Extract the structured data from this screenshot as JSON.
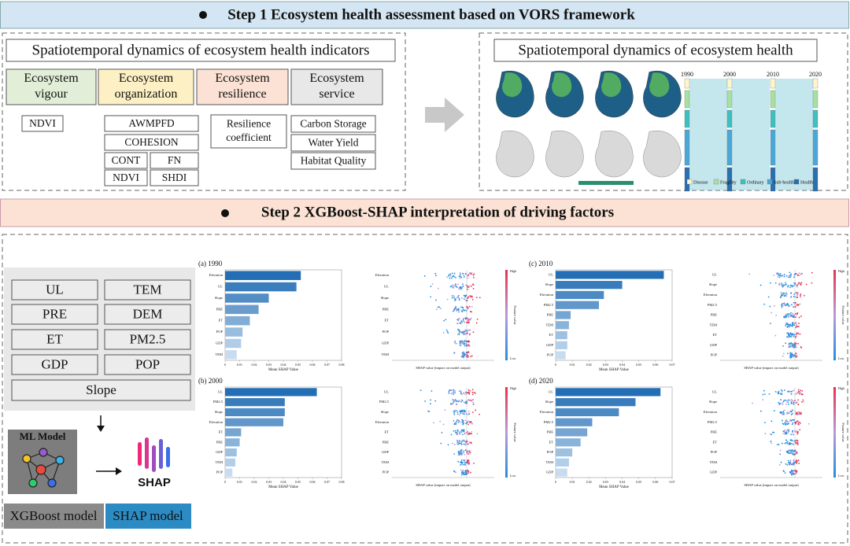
{
  "step1": {
    "title": "Step 1  Ecosystem health assessment based on VORS framework",
    "indicators": {
      "title": "Spatiotemporal dynamics of ecosystem health indicators",
      "groups": [
        {
          "name": [
            "Ecosystem",
            "vigour"
          ],
          "items": [
            "NDVI"
          ]
        },
        {
          "name": [
            "Ecosystem",
            "organization"
          ],
          "items": [
            "AWMPFD",
            "COHESION",
            "CONT",
            "FN",
            "NDVI",
            "SHDI"
          ]
        },
        {
          "name": [
            "Ecosystem",
            "resilience"
          ],
          "items": [
            [
              "Resilience",
              "coefficient"
            ]
          ]
        },
        {
          "name": [
            "Ecosystem",
            "service"
          ],
          "items": [
            "Carbon Storage",
            "Water Yield",
            "Habitat Quality"
          ]
        }
      ]
    },
    "health": {
      "title": "Spatiotemporal dynamics of ecosystem health",
      "sankey_years": [
        "1990",
        "2000",
        "2010",
        "2020"
      ],
      "legend": [
        "Disease",
        "Fragility",
        "Ordinary",
        "Sub-health",
        "Health"
      ]
    }
  },
  "step2": {
    "title": "Step 2  XGBoost-SHAP interpretation of driving factors",
    "factors": [
      "UL",
      "TEM",
      "PRE",
      "DEM",
      "ET",
      "PM2.5",
      "GDP",
      "POP",
      "Slope"
    ],
    "ml_model": "ML Model",
    "shap_logo": "SHAP",
    "legend": [
      "XGBoost model",
      "SHAP model"
    ],
    "panels": [
      {
        "type": "bar",
        "label": "(a) 1990",
        "categories": [
          "Elevation",
          "UL",
          "Slope",
          "PRE",
          "ET",
          "POP",
          "GDP",
          "TEM"
        ],
        "values": [
          0.052,
          0.049,
          0.03,
          0.023,
          0.017,
          0.012,
          0.011,
          0.008
        ],
        "xlim": [
          0,
          0.08
        ],
        "xticks": [
          0,
          0.01,
          0.02,
          0.03,
          0.04,
          0.05,
          0.06,
          0.07,
          0.08
        ],
        "xlabel": "Mean SHAP Value",
        "beeswarm": {
          "features": [
            "Elevation",
            "UL",
            "Slope",
            "PRE",
            "ET",
            "POP",
            "GDP",
            "TEM"
          ],
          "xlabel": "SHAP value (impact on model output)",
          "high": "High",
          "low": "Low",
          "colorbar_label": "Feature value"
        }
      },
      {
        "type": "bar",
        "label": "(b) 2000",
        "categories": [
          "UL",
          "PM2.5",
          "Slope",
          "Elevation",
          "ET",
          "PRE",
          "GDP",
          "TEM",
          "POP"
        ],
        "values": [
          0.063,
          0.041,
          0.041,
          0.04,
          0.011,
          0.01,
          0.008,
          0.007,
          0.005
        ],
        "xlim": [
          0,
          0.08
        ],
        "xticks": [
          0,
          0.01,
          0.02,
          0.03,
          0.04,
          0.05,
          0.06,
          0.07,
          0.08
        ],
        "xlabel": "Mean SHAP Value",
        "beeswarm": {
          "features": [
            "UL",
            "PM2.5",
            "Slope",
            "Elevation",
            "ET",
            "PRE",
            "GDP",
            "TEM",
            "POP"
          ],
          "xlabel": "SHAP value (impact on model output)",
          "high": "High",
          "low": "Low",
          "colorbar_label": "Feature value"
        }
      },
      {
        "type": "bar",
        "label": "(c) 2010",
        "categories": [
          "UL",
          "Slope",
          "Elevation",
          "PM2.5",
          "PRE",
          "TEM",
          "ET",
          "GDP",
          "POP"
        ],
        "values": [
          0.065,
          0.04,
          0.029,
          0.026,
          0.009,
          0.008,
          0.007,
          0.007,
          0.006
        ],
        "xlim": [
          0,
          0.07
        ],
        "xticks": [
          0,
          0.01,
          0.02,
          0.03,
          0.04,
          0.05,
          0.06,
          0.07
        ],
        "xlabel": "Mean SHAP Value",
        "beeswarm": {
          "features": [
            "UL",
            "Slope",
            "Elevation",
            "PM2.5",
            "PRE",
            "TEM",
            "ET",
            "GDP",
            "POP"
          ],
          "xlabel": "SHAP value (impact on model output)",
          "high": "High",
          "low": "Low",
          "colorbar_label": "Feature value"
        }
      },
      {
        "type": "bar",
        "label": "(d) 2020",
        "categories": [
          "UL",
          "Slope",
          "Elevation",
          "PM2.5",
          "PRE",
          "ET",
          "POP",
          "TEM",
          "GDP"
        ],
        "values": [
          0.063,
          0.048,
          0.038,
          0.022,
          0.019,
          0.015,
          0.01,
          0.008,
          0.007
        ],
        "xlim": [
          0,
          0.07
        ],
        "xticks": [
          0,
          0.01,
          0.02,
          0.03,
          0.04,
          0.05,
          0.06,
          0.07
        ],
        "xlabel": "Mean SHAP Value",
        "beeswarm": {
          "features": [
            "UL",
            "Slope",
            "Elevation",
            "PM2.5",
            "PRE",
            "ET",
            "POP",
            "TEM",
            "GDP"
          ],
          "xlabel": "SHAP value (impact on model output)",
          "high": "High",
          "low": "Low",
          "colorbar_label": "Feature value"
        }
      }
    ]
  }
}
